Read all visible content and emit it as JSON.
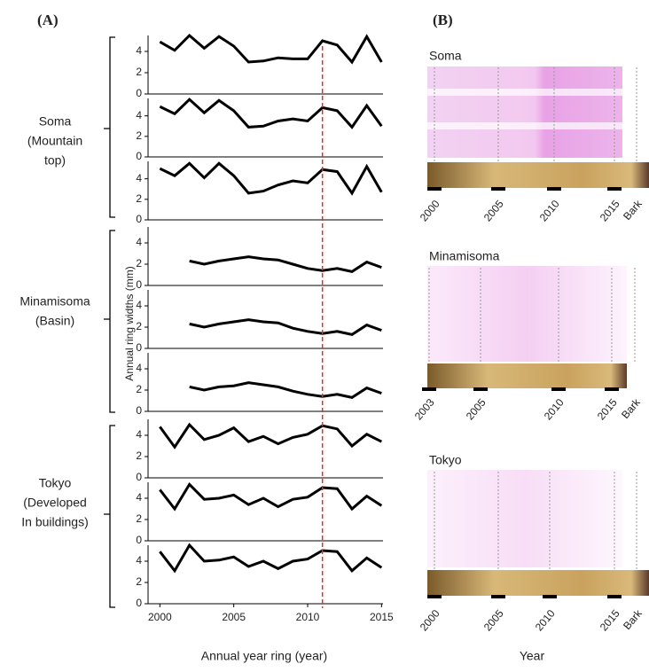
{
  "chart_data": [
    {
      "type": "line",
      "x": [
        2000,
        2001,
        2002,
        2003,
        2004,
        2005,
        2006,
        2007,
        2008,
        2009,
        2010,
        2011,
        2012,
        2013,
        2014,
        2015
      ],
      "series": [
        {
          "color": "#000000",
          "values": [
            4.9,
            4.1,
            5.5,
            4.3,
            5.4,
            4.5,
            3.0,
            3.1,
            3.4,
            3.3,
            3.3,
            5.0,
            4.6,
            3.0,
            5.4,
            3.0
          ]
        }
      ],
      "xlim": [
        1999.2,
        2015.1
      ],
      "ylim": [
        0,
        5.5
      ],
      "yticks": [
        0,
        2,
        4
      ]
    },
    {
      "type": "line",
      "x": [
        2000,
        2001,
        2002,
        2003,
        2004,
        2005,
        2006,
        2007,
        2008,
        2009,
        2010,
        2011,
        2012,
        2013,
        2014,
        2015
      ],
      "series": [
        {
          "color": "#000000",
          "values": [
            4.9,
            4.2,
            5.6,
            4.3,
            5.5,
            4.5,
            2.9,
            3.0,
            3.5,
            3.7,
            3.5,
            4.8,
            4.5,
            2.9,
            5.0,
            3.0
          ]
        }
      ],
      "xlim": [
        1999.2,
        2015.1
      ],
      "ylim": [
        0,
        5.7
      ],
      "yticks": [
        0,
        2,
        4
      ]
    },
    {
      "type": "line",
      "x": [
        2000,
        2001,
        2002,
        2003,
        2004,
        2005,
        2006,
        2007,
        2008,
        2009,
        2010,
        2011,
        2012,
        2013,
        2014,
        2015
      ],
      "series": [
        {
          "color": "#000000",
          "values": [
            5.0,
            4.3,
            5.5,
            4.1,
            5.5,
            4.3,
            2.6,
            2.8,
            3.4,
            3.8,
            3.6,
            4.9,
            4.7,
            2.6,
            5.2,
            2.7
          ]
        }
      ],
      "xlim": [
        1999.2,
        2015.1
      ],
      "ylim": [
        0,
        5.7
      ],
      "yticks": [
        0,
        2,
        4
      ]
    },
    {
      "type": "line",
      "x": [
        2000,
        2001,
        2002,
        2003,
        2004,
        2005,
        2006,
        2007,
        2008,
        2009,
        2010,
        2011,
        2012,
        2013,
        2014,
        2015
      ],
      "series": [
        {
          "color": "#000000",
          "values": [
            null,
            null,
            2.3,
            2.0,
            2.3,
            2.5,
            2.7,
            2.5,
            2.4,
            2.0,
            1.6,
            1.4,
            1.6,
            1.3,
            2.2,
            1.7
          ]
        }
      ],
      "xlim": [
        1999.2,
        2015.1
      ],
      "ylim": [
        0,
        5.5
      ],
      "yticks": [
        0,
        2,
        4
      ]
    },
    {
      "type": "line",
      "x": [
        2000,
        2001,
        2002,
        2003,
        2004,
        2005,
        2006,
        2007,
        2008,
        2009,
        2010,
        2011,
        2012,
        2013,
        2014,
        2015
      ],
      "series": [
        {
          "color": "#000000",
          "values": [
            null,
            null,
            2.3,
            2.0,
            2.3,
            2.5,
            2.7,
            2.5,
            2.4,
            1.9,
            1.6,
            1.4,
            1.6,
            1.3,
            2.2,
            1.7
          ]
        }
      ],
      "xlim": [
        1999.2,
        2015.1
      ],
      "ylim": [
        0,
        5.5
      ],
      "yticks": [
        0,
        2,
        4
      ]
    },
    {
      "type": "line",
      "x": [
        2000,
        2001,
        2002,
        2003,
        2004,
        2005,
        2006,
        2007,
        2008,
        2009,
        2010,
        2011,
        2012,
        2013,
        2014,
        2015
      ],
      "series": [
        {
          "color": "#000000",
          "values": [
            null,
            null,
            2.3,
            2.0,
            2.3,
            2.4,
            2.7,
            2.5,
            2.3,
            1.9,
            1.6,
            1.4,
            1.6,
            1.3,
            2.2,
            1.7
          ]
        }
      ],
      "xlim": [
        1999.2,
        2015.1
      ],
      "ylim": [
        0,
        5.5
      ],
      "yticks": [
        0,
        2,
        4
      ]
    },
    {
      "type": "line",
      "x": [
        2000,
        2001,
        2002,
        2003,
        2004,
        2005,
        2006,
        2007,
        2008,
        2009,
        2010,
        2011,
        2012,
        2013,
        2014,
        2015
      ],
      "series": [
        {
          "color": "#000000",
          "values": [
            4.8,
            2.9,
            5.0,
            3.6,
            4.0,
            4.7,
            3.4,
            3.9,
            3.2,
            3.8,
            4.1,
            4.9,
            4.6,
            3.0,
            4.1,
            3.4
          ]
        }
      ],
      "xlim": [
        1999.2,
        2015.1
      ],
      "ylim": [
        0,
        5.5
      ],
      "yticks": [
        0,
        2,
        4
      ]
    },
    {
      "type": "line",
      "x": [
        2000,
        2001,
        2002,
        2003,
        2004,
        2005,
        2006,
        2007,
        2008,
        2009,
        2010,
        2011,
        2012,
        2013,
        2014,
        2015
      ],
      "series": [
        {
          "color": "#000000",
          "values": [
            4.8,
            3.0,
            5.3,
            3.9,
            4.0,
            4.3,
            3.4,
            4.0,
            3.2,
            3.9,
            4.1,
            5.0,
            4.9,
            3.0,
            4.2,
            3.3
          ]
        }
      ],
      "xlim": [
        1999.2,
        2015.1
      ],
      "ylim": [
        0,
        5.5
      ],
      "yticks": [
        0,
        2,
        4
      ]
    },
    {
      "type": "line",
      "x": [
        2000,
        2001,
        2002,
        2003,
        2004,
        2005,
        2006,
        2007,
        2008,
        2009,
        2010,
        2011,
        2012,
        2013,
        2014,
        2015
      ],
      "series": [
        {
          "color": "#000000",
          "values": [
            4.9,
            3.1,
            5.5,
            4.0,
            4.1,
            4.4,
            3.5,
            4.0,
            3.3,
            4.0,
            4.2,
            5.0,
            4.9,
            3.1,
            4.3,
            3.4
          ]
        }
      ],
      "xlim": [
        1999.2,
        2015.1
      ],
      "ylim": [
        0,
        5.5
      ],
      "yticks": [
        0,
        2,
        4
      ],
      "xticks": [
        2000,
        2005,
        2010,
        2015
      ]
    }
  ],
  "panel_a": {
    "label": "(A)",
    "groups": [
      [
        "Soma",
        "(Mountain",
        "top)"
      ],
      [
        "Minamisoma",
        "(Basin)"
      ],
      [
        "Tokyo",
        "(Developed",
        "In buildings)"
      ]
    ],
    "ylabel": "Annual ring widths (mm)",
    "xlabel": "Annual year ring (year)",
    "reference_year": 2011,
    "reference_color": "#e0301e"
  },
  "panel_b": {
    "label": "(B)",
    "xlabel": "Year",
    "groups": [
      {
        "title": "Soma",
        "ticks": [
          "2000",
          "2005",
          "2010",
          "2015",
          "Bark"
        ]
      },
      {
        "title": "Minamisoma",
        "ticks": [
          "2003",
          "2005",
          "2010",
          "2015",
          "Bark"
        ]
      },
      {
        "title": "Tokyo",
        "ticks": [
          "2000",
          "2005",
          "2010",
          "2015",
          "Bark"
        ]
      }
    ]
  }
}
